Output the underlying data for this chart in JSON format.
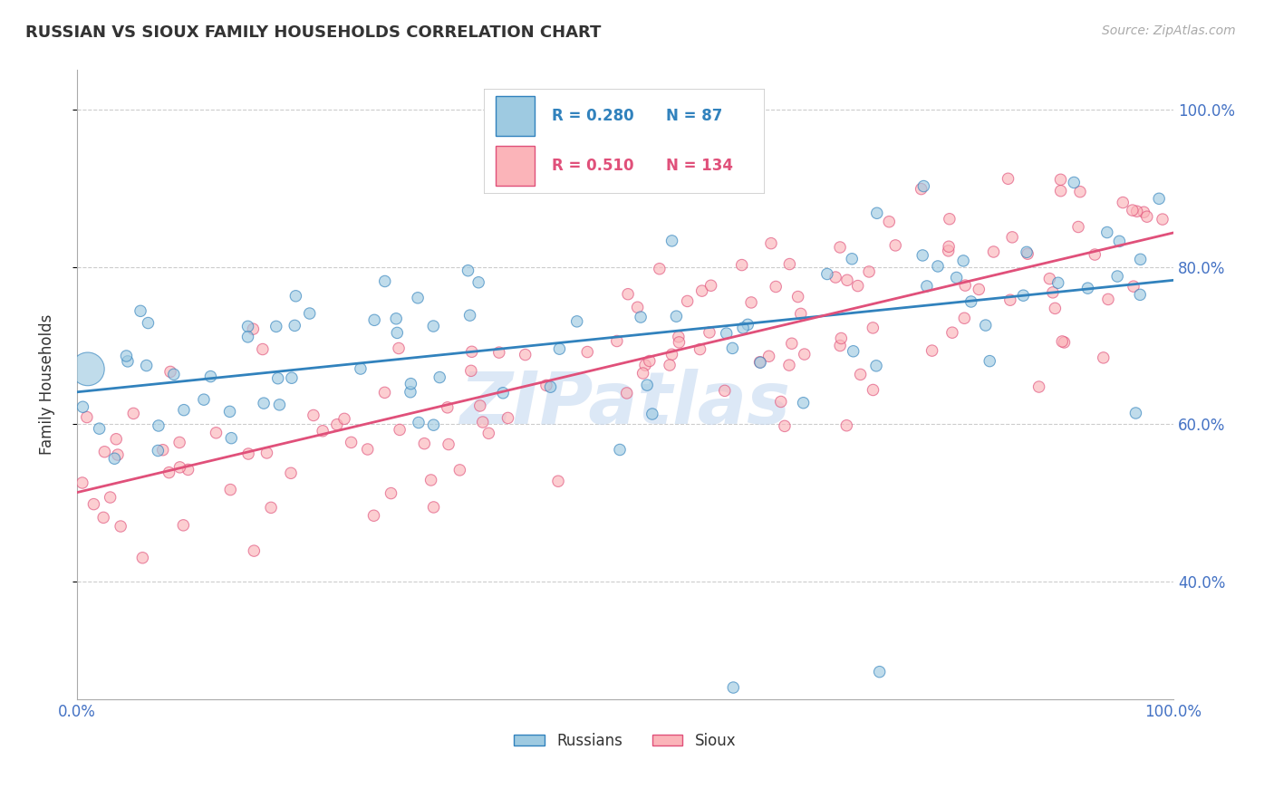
{
  "title": "RUSSIAN VS SIOUX FAMILY HOUSEHOLDS CORRELATION CHART",
  "source": "Source: ZipAtlas.com",
  "ylabel": "Family Households",
  "legend_russian": "Russians",
  "legend_sioux": "Sioux",
  "r_russian": "0.280",
  "n_russian": "87",
  "r_sioux": "0.510",
  "n_sioux": "134",
  "color_russian": "#9ecae1",
  "color_sioux": "#fbb4b9",
  "color_russian_line": "#3182bd",
  "color_sioux_line": "#e0507a",
  "color_axis_labels": "#4472c4",
  "watermark_color": "#c6d9f0",
  "background_color": "#ffffff",
  "xlim": [
    0.0,
    1.0
  ],
  "ylim": [
    0.25,
    1.05
  ]
}
